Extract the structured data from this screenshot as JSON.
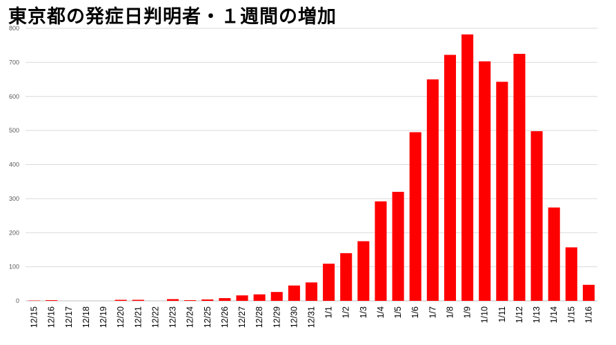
{
  "chart_data": {
    "type": "bar",
    "title": "東京都の発症日判明者・１週間の増加",
    "xlabel": "",
    "ylabel": "",
    "ylim": [
      0,
      800
    ],
    "yticks": [
      0,
      100,
      200,
      300,
      400,
      500,
      600,
      700,
      800
    ],
    "grid": true,
    "legend": "none",
    "bar_color": "#ff0000",
    "categories": [
      "12/15",
      "12/16",
      "12/17",
      "12/18",
      "12/19",
      "12/20",
      "12/21",
      "12/22",
      "12/23",
      "12/24",
      "12/25",
      "12/26",
      "12/27",
      "12/28",
      "12/29",
      "12/30",
      "12/31",
      "1/1",
      "1/2",
      "1/3",
      "1/4",
      "1/5",
      "1/6",
      "1/7",
      "1/8",
      "1/9",
      "1/10",
      "1/11",
      "1/12",
      "1/13",
      "1/14",
      "1/15",
      "1/16"
    ],
    "values": [
      1,
      2,
      0,
      0,
      0,
      3,
      3,
      0,
      5,
      2,
      4,
      8,
      16,
      19,
      26,
      45,
      54,
      109,
      140,
      175,
      292,
      320,
      495,
      650,
      722,
      782,
      703,
      643,
      725,
      498,
      274,
      157,
      47
    ]
  }
}
